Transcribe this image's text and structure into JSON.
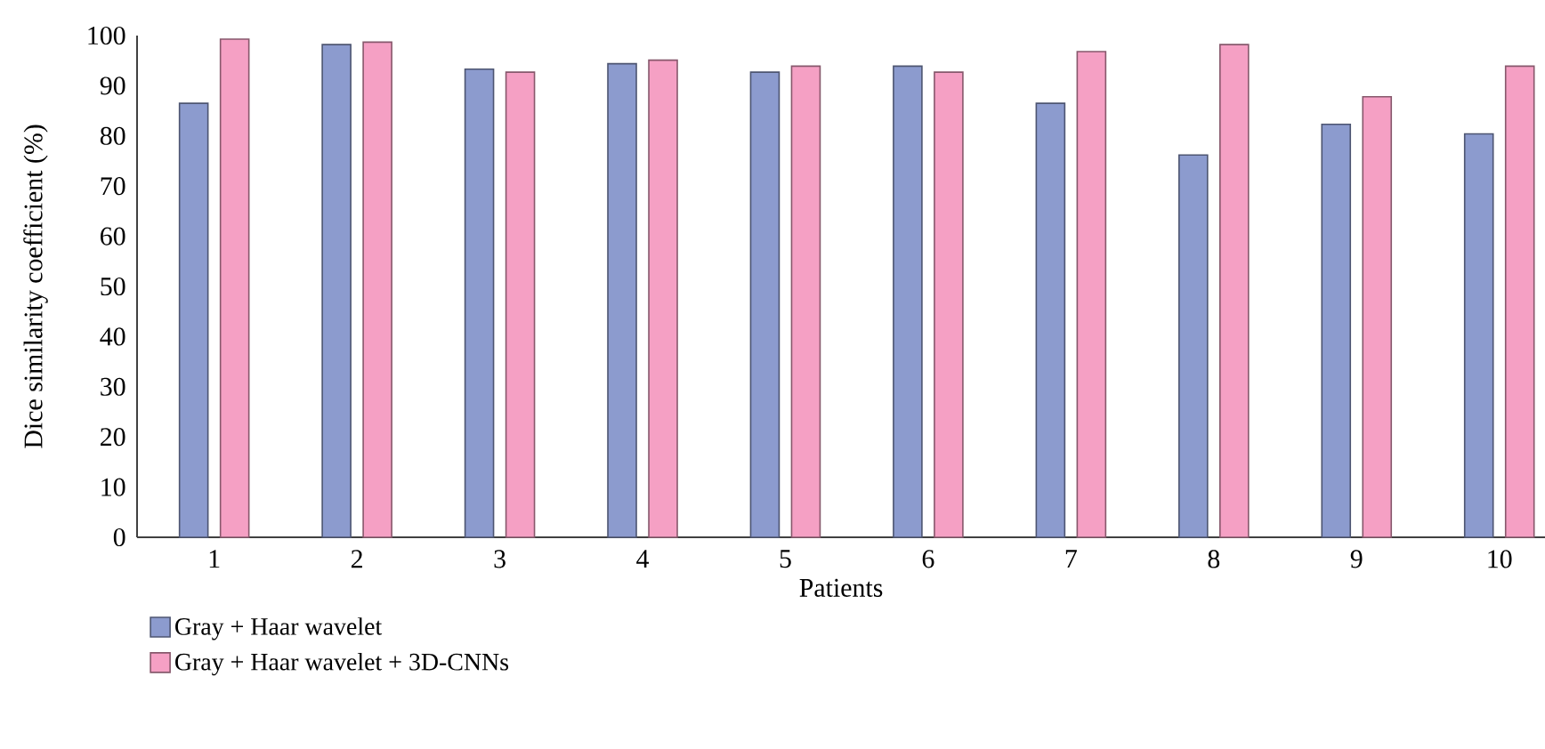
{
  "chart_data": {
    "type": "bar",
    "xlabel": "Patients",
    "ylabel": "Dice similarity coefficient (%)",
    "categories": [
      "1",
      "2",
      "3",
      "4",
      "5",
      "6",
      "7",
      "8",
      "9",
      "10"
    ],
    "series": [
      {
        "name": "Gray + Haar wavelet",
        "color": "#8c9bce",
        "values": [
          86.5,
          98.2,
          93.3,
          94.4,
          92.7,
          93.9,
          86.5,
          76.2,
          82.3,
          80.4
        ]
      },
      {
        "name": "Gray + Haar wavelet + 3D-CNNs",
        "color": "#f5a0c4",
        "values": [
          99.3,
          98.7,
          92.7,
          95.1,
          93.9,
          92.7,
          96.8,
          98.2,
          87.8,
          93.9
        ]
      }
    ],
    "ylim": [
      0,
      100
    ],
    "yticks": [
      0,
      10,
      20,
      30,
      40,
      50,
      60,
      70,
      80,
      90,
      100
    ],
    "legend": "bottom left"
  }
}
